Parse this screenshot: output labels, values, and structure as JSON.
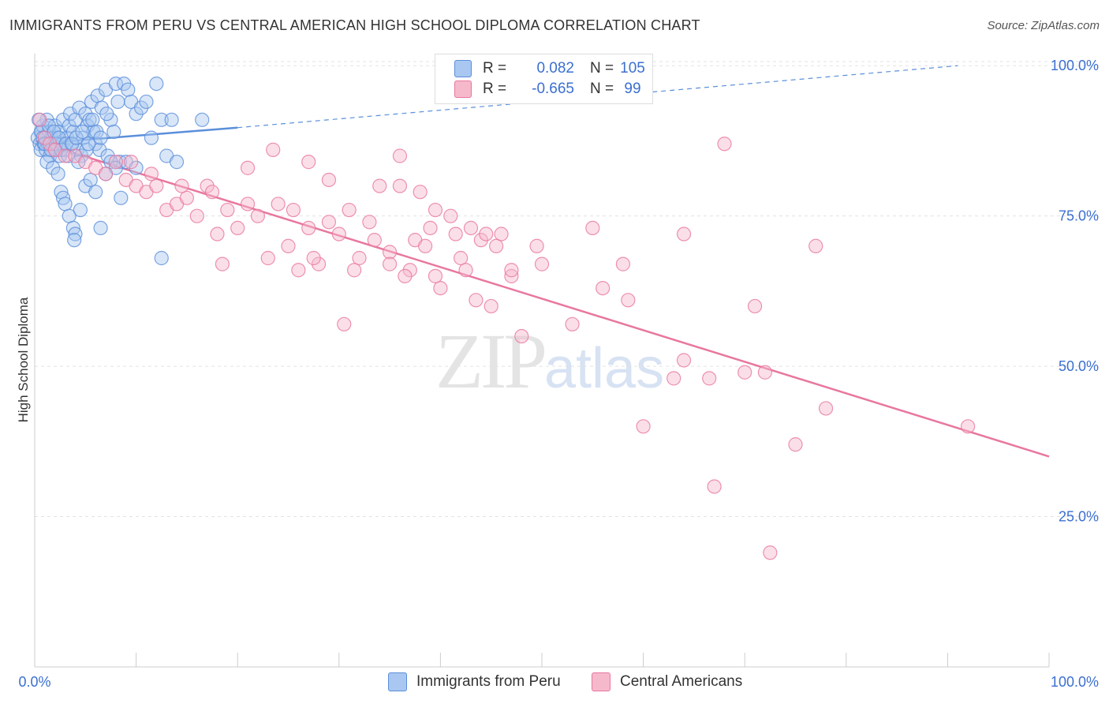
{
  "title": "IMMIGRANTS FROM PERU VS CENTRAL AMERICAN HIGH SCHOOL DIPLOMA CORRELATION CHART",
  "source": "Source: ZipAtlas.com",
  "watermark": {
    "zip": "ZIP",
    "atlas": "atlas"
  },
  "legend": {
    "rows": [
      {
        "r_label": "R =",
        "r_value": "0.082",
        "n_label": "N =",
        "n_value": "105",
        "color": "#a9c7f0"
      },
      {
        "r_label": "R =",
        "r_value": "-0.665",
        "n_label": "N =",
        "n_value": "99",
        "color": "#f6b9cc"
      }
    ]
  },
  "bottom_legend": [
    {
      "label": "Immigrants from Peru",
      "color": "#a9c7f0"
    },
    {
      "label": "Central Americans",
      "color": "#f6b9cc"
    }
  ],
  "chart_data": {
    "type": "scatter",
    "title": "IMMIGRANTS FROM PERU VS CENTRAL AMERICAN HIGH SCHOOL DIPLOMA CORRELATION CHART",
    "xlabel": "",
    "ylabel": "High School Diploma",
    "xlim": [
      0,
      100
    ],
    "ylim": [
      0,
      102
    ],
    "x_tick_labels": [
      "0.0%",
      "100.0%"
    ],
    "y_ticks": [
      25,
      50,
      75,
      100
    ],
    "y_tick_labels": [
      "25.0%",
      "50.0%",
      "75.0%",
      "100.0%"
    ],
    "grid": true,
    "series": [
      {
        "name": "Immigrants from Peru",
        "color": "#5b8fdb",
        "fill": "#a9c7f0",
        "trend": {
          "x0": 0,
          "y0": 87.0,
          "x1": 20,
          "y1": 89.7,
          "dash_to_x": 91,
          "dash_to_y": 100
        },
        "points": [
          [
            0.3,
            88
          ],
          [
            0.5,
            87
          ],
          [
            0.6,
            86
          ],
          [
            0.7,
            89
          ],
          [
            0.8,
            90
          ],
          [
            0.9,
            87
          ],
          [
            1.0,
            88
          ],
          [
            1.1,
            86
          ],
          [
            1.2,
            91
          ],
          [
            1.3,
            87
          ],
          [
            1.4,
            89
          ],
          [
            1.5,
            85
          ],
          [
            1.6,
            88
          ],
          [
            1.8,
            87
          ],
          [
            2.0,
            90
          ],
          [
            2.1,
            86
          ],
          [
            2.2,
            88
          ],
          [
            2.4,
            89
          ],
          [
            2.5,
            85
          ],
          [
            2.7,
            87
          ],
          [
            2.8,
            91
          ],
          [
            3.0,
            86
          ],
          [
            3.2,
            88
          ],
          [
            3.4,
            90
          ],
          [
            3.5,
            92
          ],
          [
            3.6,
            87
          ],
          [
            3.8,
            89
          ],
          [
            4.0,
            91
          ],
          [
            4.2,
            86
          ],
          [
            4.4,
            93
          ],
          [
            4.6,
            85
          ],
          [
            4.8,
            88
          ],
          [
            5.0,
            92
          ],
          [
            5.2,
            90
          ],
          [
            5.4,
            91
          ],
          [
            5.6,
            94
          ],
          [
            5.8,
            89
          ],
          [
            6.0,
            87
          ],
          [
            6.2,
            95
          ],
          [
            6.4,
            86
          ],
          [
            6.6,
            93
          ],
          [
            7.0,
            96
          ],
          [
            7.2,
            85
          ],
          [
            7.5,
            91
          ],
          [
            7.8,
            89
          ],
          [
            8.0,
            97
          ],
          [
            8.2,
            94
          ],
          [
            8.4,
            84
          ],
          [
            8.8,
            97
          ],
          [
            9.2,
            96
          ],
          [
            9.5,
            94
          ],
          [
            10.0,
            92
          ],
          [
            10.5,
            93
          ],
          [
            11.0,
            94
          ],
          [
            11.5,
            88
          ],
          [
            12.0,
            97
          ],
          [
            12.5,
            91
          ],
          [
            13.0,
            85
          ],
          [
            13.5,
            91
          ],
          [
            14.0,
            84
          ],
          [
            1.2,
            84
          ],
          [
            1.8,
            83
          ],
          [
            2.3,
            82
          ],
          [
            2.6,
            79
          ],
          [
            2.8,
            78
          ],
          [
            3.0,
            77
          ],
          [
            3.4,
            75
          ],
          [
            3.8,
            73
          ],
          [
            4.0,
            72
          ],
          [
            4.5,
            76
          ],
          [
            5.0,
            80
          ],
          [
            5.5,
            81
          ],
          [
            6.0,
            79
          ],
          [
            6.5,
            73
          ],
          [
            7.0,
            82
          ],
          [
            7.5,
            84
          ],
          [
            8.0,
            83
          ],
          [
            8.5,
            78
          ],
          [
            9.0,
            84
          ],
          [
            10.0,
            83
          ],
          [
            12.5,
            68
          ],
          [
            16.5,
            91
          ],
          [
            0.4,
            91
          ],
          [
            0.6,
            89
          ],
          [
            0.8,
            88
          ],
          [
            1.0,
            87
          ],
          [
            1.4,
            90
          ],
          [
            1.6,
            86
          ],
          [
            1.9,
            89
          ],
          [
            2.1,
            87
          ],
          [
            2.4,
            88
          ],
          [
            2.6,
            86
          ],
          [
            3.1,
            87
          ],
          [
            3.3,
            85
          ],
          [
            3.7,
            87
          ],
          [
            4.1,
            88
          ],
          [
            4.3,
            84
          ],
          [
            4.7,
            89
          ],
          [
            5.1,
            86
          ],
          [
            5.3,
            87
          ],
          [
            5.7,
            91
          ],
          [
            6.1,
            89
          ],
          [
            6.5,
            88
          ],
          [
            7.1,
            92
          ],
          [
            3.9,
            71
          ]
        ]
      },
      {
        "name": "Central Americans",
        "color": "#e8779f",
        "fill": "#f6b9cc",
        "trend": {
          "x0": 0,
          "y0": 87.5,
          "x1": 100,
          "y1": 35.0
        },
        "points": [
          [
            0.5,
            91
          ],
          [
            1.0,
            88
          ],
          [
            1.5,
            87
          ],
          [
            2.0,
            86
          ],
          [
            3.0,
            85
          ],
          [
            4.0,
            85
          ],
          [
            5.0,
            84
          ],
          [
            6.0,
            83
          ],
          [
            7.0,
            82
          ],
          [
            8.0,
            84
          ],
          [
            9.0,
            81
          ],
          [
            10.0,
            80
          ],
          [
            11.0,
            79
          ],
          [
            12.0,
            80
          ],
          [
            13.0,
            76
          ],
          [
            14.0,
            77
          ],
          [
            15.0,
            78
          ],
          [
            16.0,
            75
          ],
          [
            17.0,
            80
          ],
          [
            18.0,
            72
          ],
          [
            19.0,
            76
          ],
          [
            20.0,
            73
          ],
          [
            21.0,
            77
          ],
          [
            22.0,
            75
          ],
          [
            23.0,
            68
          ],
          [
            24.0,
            77
          ],
          [
            25.0,
            70
          ],
          [
            26.0,
            66
          ],
          [
            27.0,
            73
          ],
          [
            28.0,
            67
          ],
          [
            29.0,
            74
          ],
          [
            30.0,
            72
          ],
          [
            31.0,
            76
          ],
          [
            32.0,
            68
          ],
          [
            33.0,
            74
          ],
          [
            34.0,
            80
          ],
          [
            35.0,
            69
          ],
          [
            36.0,
            80
          ],
          [
            37.0,
            66
          ],
          [
            38.0,
            79
          ],
          [
            39.0,
            73
          ],
          [
            40.0,
            63
          ],
          [
            41.0,
            75
          ],
          [
            42.0,
            68
          ],
          [
            43.0,
            73
          ],
          [
            44.0,
            71
          ],
          [
            45.0,
            60
          ],
          [
            46.0,
            72
          ],
          [
            47.0,
            65
          ],
          [
            48.0,
            55
          ],
          [
            36.0,
            85
          ],
          [
            27.0,
            84
          ],
          [
            23.5,
            86
          ],
          [
            21.0,
            83
          ],
          [
            29.0,
            81
          ],
          [
            17.5,
            79
          ],
          [
            14.5,
            80
          ],
          [
            11.5,
            82
          ],
          [
            9.5,
            84
          ],
          [
            18.5,
            67
          ],
          [
            25.5,
            76
          ],
          [
            27.5,
            68
          ],
          [
            30.5,
            57
          ],
          [
            31.5,
            66
          ],
          [
            33.5,
            71
          ],
          [
            35.0,
            67
          ],
          [
            36.5,
            65
          ],
          [
            37.5,
            71
          ],
          [
            38.5,
            70
          ],
          [
            39.5,
            65
          ],
          [
            41.5,
            72
          ],
          [
            42.5,
            66
          ],
          [
            43.5,
            61
          ],
          [
            44.5,
            72
          ],
          [
            45.5,
            70
          ],
          [
            47.0,
            66
          ],
          [
            49.5,
            70
          ],
          [
            50.0,
            67
          ],
          [
            55.0,
            73
          ],
          [
            58.0,
            67
          ],
          [
            60.0,
            40
          ],
          [
            63.0,
            48
          ],
          [
            64.0,
            51
          ],
          [
            66.5,
            48
          ],
          [
            67.0,
            30
          ],
          [
            71.0,
            60
          ],
          [
            72.0,
            49
          ],
          [
            75.0,
            37
          ],
          [
            77.0,
            70
          ],
          [
            78.0,
            43
          ],
          [
            92.0,
            40
          ],
          [
            72.5,
            19
          ],
          [
            70.0,
            49
          ],
          [
            53.0,
            57
          ],
          [
            56.0,
            63
          ],
          [
            58.5,
            61
          ],
          [
            64.0,
            72
          ],
          [
            68.0,
            87
          ],
          [
            39.5,
            76
          ]
        ]
      }
    ]
  }
}
